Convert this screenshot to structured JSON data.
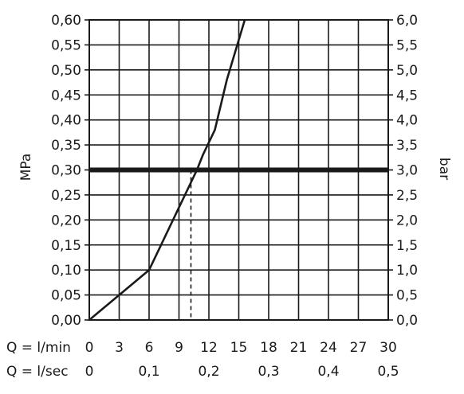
{
  "chart_data": {
    "type": "line",
    "y_left_label": "MPa",
    "y_right_label": "bar",
    "x_rows": [
      {
        "label": "Q = l/min",
        "ticks": [
          "0",
          "3",
          "6",
          "9",
          "12",
          "15",
          "18",
          "21",
          "24",
          "27",
          "30"
        ],
        "values": [
          0,
          3,
          6,
          9,
          12,
          15,
          18,
          21,
          24,
          27,
          30
        ]
      },
      {
        "label": "Q = l/sec",
        "ticks": [
          "0",
          "0,1",
          "0,2",
          "0,3",
          "0,4",
          "0,5"
        ],
        "values": [
          0,
          6,
          12,
          18,
          24,
          30
        ]
      }
    ],
    "y_left_ticks": [
      "0,00",
      "0,05",
      "0,10",
      "0,15",
      "0,20",
      "0,25",
      "0,30",
      "0,35",
      "0,40",
      "0,45",
      "0,50",
      "0,55",
      "0,60"
    ],
    "y_right_ticks": [
      "0,0",
      "0,5",
      "1,0",
      "1,5",
      "2,0",
      "2,5",
      "3,0",
      "3,5",
      "4,0",
      "4,5",
      "5,0",
      "5,5",
      "6,0"
    ],
    "xlim": [
      0,
      30
    ],
    "ylim": [
      0,
      0.6
    ],
    "grid": true,
    "series": [
      {
        "x": [
          0,
          3,
          6,
          7.2,
          8.4,
          9.6,
          10.8,
          11.4,
          12.6,
          13.2,
          13.8,
          14.4,
          15.6
        ],
        "y": [
          0,
          0.05,
          0.1,
          0.15,
          0.2,
          0.25,
          0.3,
          0.33,
          0.38,
          0.43,
          0.48,
          0.52,
          0.6
        ]
      }
    ],
    "reference_line": {
      "y": 0.3
    },
    "reference_marker": {
      "x": 10.2,
      "y": 0.3
    }
  }
}
